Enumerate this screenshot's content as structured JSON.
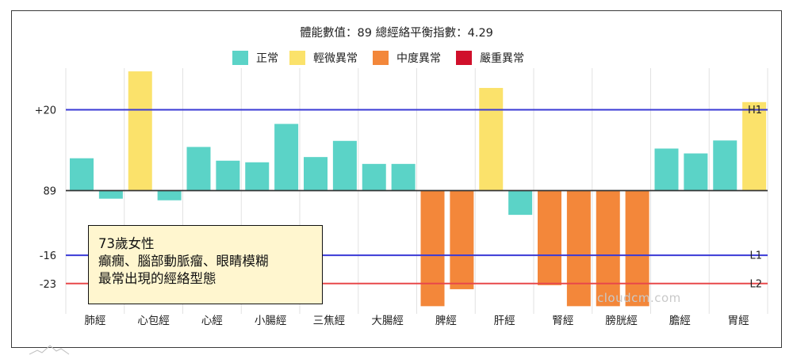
{
  "chart_data": {
    "type": "bar",
    "title": "體能數值：89 總經絡平衡指數：4.29",
    "legend": [
      {
        "label": "正常",
        "color": "#5bd3c7"
      },
      {
        "label": "輕微異常",
        "color": "#fbe26b"
      },
      {
        "label": "中度異常",
        "color": "#f3873a"
      },
      {
        "label": "嚴重異常",
        "color": "#d0102b"
      }
    ],
    "baseline": 0,
    "y_tick_labels": [
      {
        "label": "+20",
        "value": 20
      },
      {
        "label": "89",
        "value": 0
      },
      {
        "label": "-16",
        "value": -16
      },
      {
        "label": "-23",
        "value": -23
      }
    ],
    "reference_lines": [
      {
        "label": "H1",
        "value": 20,
        "color": "#3a3ad6"
      },
      {
        "label": "L1",
        "value": -16,
        "color": "#3a3ad6"
      },
      {
        "label": "L2",
        "value": -23,
        "color": "#e8484a"
      }
    ],
    "categories": [
      "肺經",
      "心包經",
      "心經",
      "小腸經",
      "三焦經",
      "大腸經",
      "脾經",
      "肝經",
      "腎經",
      "膀胱經",
      "膽經",
      "胃經"
    ],
    "bars": [
      {
        "category": "肺經",
        "value": 8,
        "status": "正常"
      },
      {
        "category": "肺經",
        "value": -2,
        "status": "正常"
      },
      {
        "category": "心包經",
        "value": 29.5,
        "status": "輕微異常"
      },
      {
        "category": "心包經",
        "value": -2.4,
        "status": "正常"
      },
      {
        "category": "心經",
        "value": 10.8,
        "status": "正常"
      },
      {
        "category": "心經",
        "value": 7.4,
        "status": "正常"
      },
      {
        "category": "小腸經",
        "value": 7,
        "status": "正常"
      },
      {
        "category": "小腸經",
        "value": 16.5,
        "status": "正常"
      },
      {
        "category": "三焦經",
        "value": 8.3,
        "status": "正常"
      },
      {
        "category": "三焦經",
        "value": 12.3,
        "status": "正常"
      },
      {
        "category": "大腸經",
        "value": 6.6,
        "status": "正常"
      },
      {
        "category": "大腸經",
        "value": 6.6,
        "status": "正常"
      },
      {
        "category": "脾經",
        "value": -28.6,
        "status": "中度異常"
      },
      {
        "category": "脾經",
        "value": -24.4,
        "status": "中度異常"
      },
      {
        "category": "肝經",
        "value": 25.4,
        "status": "輕微異常"
      },
      {
        "category": "肝經",
        "value": -6,
        "status": "正常"
      },
      {
        "category": "腎經",
        "value": -23.4,
        "status": "中度異常"
      },
      {
        "category": "腎經",
        "value": -28.6,
        "status": "中度異常"
      },
      {
        "category": "膀胱經",
        "value": -28.6,
        "status": "中度異常"
      },
      {
        "category": "膀胱經",
        "value": -28.6,
        "status": "中度異常"
      },
      {
        "category": "膽經",
        "value": 10.4,
        "status": "正常"
      },
      {
        "category": "膽經",
        "value": 9.2,
        "status": "正常"
      },
      {
        "category": "胃經",
        "value": 12.4,
        "status": "正常"
      },
      {
        "category": "胃經",
        "value": 21.9,
        "status": "輕微異常"
      }
    ],
    "grid": true,
    "legend_position": "top"
  },
  "annotation": {
    "line1": "73歲女性",
    "line2": "癲癇、腦部動脈瘤、眼睛模糊",
    "line3": "最常出現的經絡型態"
  },
  "watermark": "cloudcm.com"
}
